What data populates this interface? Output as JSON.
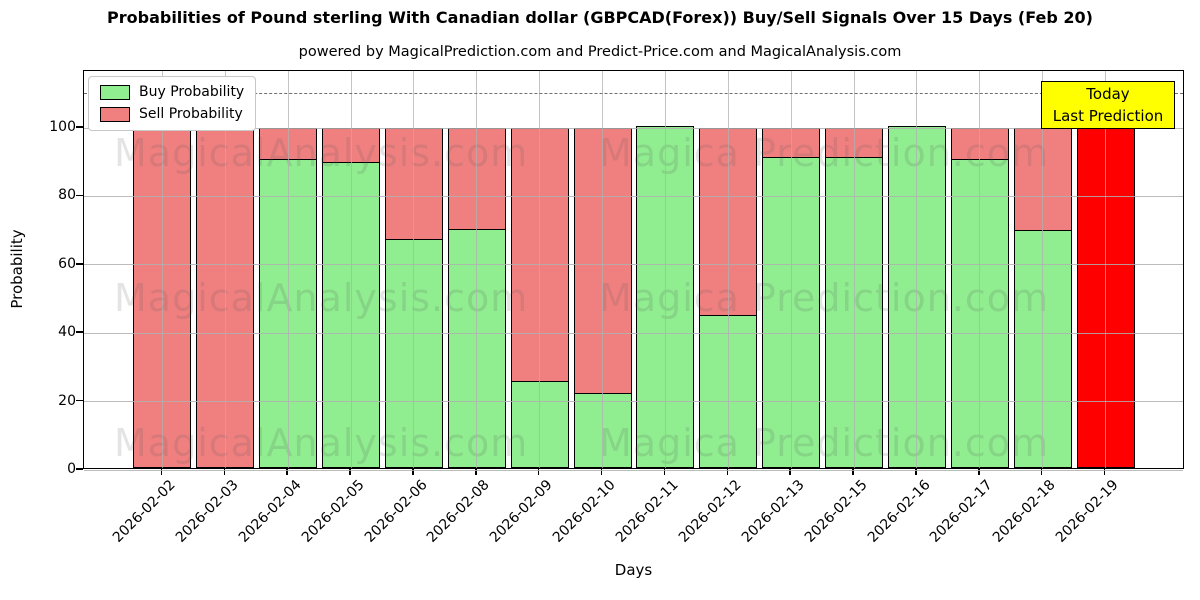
{
  "title": "Probabilities of Pound sterling With Canadian dollar (GBPCAD(Forex)) Buy/Sell Signals Over 15 Days (Feb 20)",
  "subtitle": "powered by MagicalPrediction.com and Predict-Price.com and MagicalAnalysis.com",
  "chart_data": {
    "type": "bar",
    "stacked": true,
    "categories": [
      "2026-02-02",
      "2026-02-03",
      "2026-02-04",
      "2026-02-05",
      "2026-02-06",
      "2026-02-08",
      "2026-02-09",
      "2026-02-10",
      "2026-02-11",
      "2026-02-12",
      "2026-02-13",
      "2026-02-15",
      "2026-02-16",
      "2026-02-17",
      "2026-02-18",
      "2026-02-19"
    ],
    "series": [
      {
        "name": "Buy Probability",
        "color": "#90ee90",
        "values": [
          0,
          0,
          90.5,
          89.5,
          67,
          70,
          25.5,
          21.8,
          100,
          44.8,
          91,
          91,
          100,
          90.5,
          69.5,
          0
        ]
      },
      {
        "name": "Sell Probability",
        "color": "#f08080",
        "values": [
          100,
          100,
          9.5,
          10.5,
          33,
          30,
          74.5,
          78.2,
          0,
          55.2,
          9,
          9,
          0,
          9.5,
          30.5,
          100
        ]
      }
    ],
    "today_index": 15,
    "today_sell_color": "#ff0000",
    "xlabel": "Days",
    "ylabel": "Probability",
    "yticks": [
      0,
      20,
      40,
      60,
      80,
      100
    ],
    "ylim": [
      0,
      116.7
    ],
    "dashed_line_y": 110,
    "grid": true,
    "legend_position": "upper-left"
  },
  "legend": {
    "items": [
      {
        "label": "Buy Probability",
        "color": "#90ee90"
      },
      {
        "label": "Sell Probability",
        "color": "#f08080"
      }
    ]
  },
  "annotation": {
    "line1": "Today",
    "line2": "Last Prediction",
    "bg": "#ffff00"
  },
  "watermarks": {
    "left": "MagicalAnalysis.com",
    "right": "Magica Prediction.com"
  }
}
